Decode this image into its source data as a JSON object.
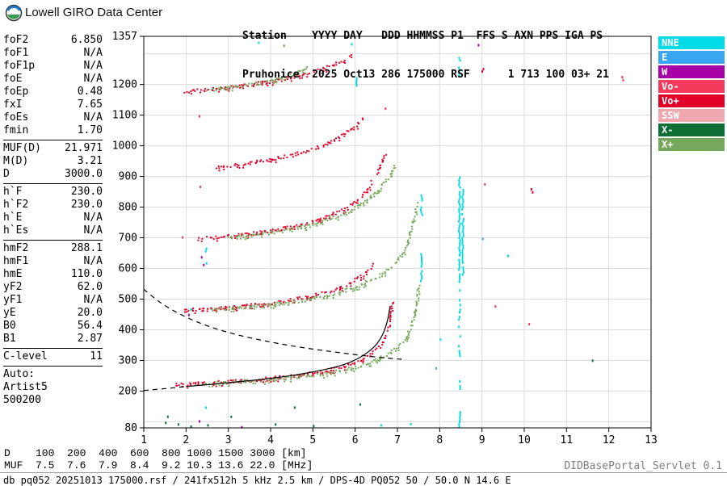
{
  "header": {
    "brand": "Lowell GIRO Data Center",
    "station_line1": "Station    YYYY DAY   DDD HHMMSS P1  FFS S AXN PPS IGA PS",
    "station_line2": "Pruhonice  2025 Oct13 286 175000 RSF      1 713 100 03+ 21"
  },
  "panel": {
    "groups": [
      [
        {
          "l": "foF2",
          "v": "6.850"
        },
        {
          "l": "foF1",
          "v": "N/A"
        },
        {
          "l": "foF1p",
          "v": "N/A"
        },
        {
          "l": "foE",
          "v": "N/A"
        },
        {
          "l": "foEp",
          "v": "0.48"
        },
        {
          "l": "fxI",
          "v": "7.65"
        },
        {
          "l": "foEs",
          "v": "N/A"
        },
        {
          "l": "fmin",
          "v": "1.70"
        }
      ],
      [
        {
          "l": "MUF(D)",
          "v": "21.971"
        },
        {
          "l": "M(D)",
          "v": "3.21"
        },
        {
          "l": "D",
          "v": "3000.0"
        }
      ],
      [
        {
          "l": "h`F",
          "v": "230.0"
        },
        {
          "l": "h`F2",
          "v": "230.0"
        },
        {
          "l": "h`E",
          "v": "N/A"
        },
        {
          "l": "h`Es",
          "v": "N/A"
        }
      ],
      [
        {
          "l": "hmF2",
          "v": "288.1"
        },
        {
          "l": "hmF1",
          "v": "N/A"
        },
        {
          "l": "hmE",
          "v": "110.0"
        },
        {
          "l": "yF2",
          "v": "62.0"
        },
        {
          "l": "yF1",
          "v": "N/A"
        },
        {
          "l": "yE",
          "v": "20.0"
        },
        {
          "l": "B0",
          "v": "56.4"
        },
        {
          "l": "B1",
          "v": "2.87"
        }
      ],
      [
        {
          "l": "C-level",
          "v": "11"
        }
      ],
      [
        {
          "l": "Auto:",
          "v": ""
        },
        {
          "l": "Artist5",
          "v": ""
        },
        {
          "l": "500200",
          "v": ""
        }
      ]
    ]
  },
  "legend": {
    "items": [
      {
        "label": "NNE",
        "color": "#00dbe7"
      },
      {
        "label": "E",
        "color": "#3aa5f0"
      },
      {
        "label": "W",
        "color": "#a800a8"
      },
      {
        "label": "Vo-",
        "color": "#f43a5a"
      },
      {
        "label": "Vo+",
        "color": "#e00028"
      },
      {
        "label": "SSW",
        "color": "#f0a8b0"
      },
      {
        "label": "X-",
        "color": "#0e6e34"
      },
      {
        "label": "X+",
        "color": "#76a85c"
      }
    ]
  },
  "footer": {
    "servlet": "DIDBasePortal_Servlet 0.1",
    "status": "db pq052 20251013 175000.rsf / 241fx512h 5 kHz 2.5 km / DPS-4D PQ052 50 / 50.0 N 14.6 E",
    "d_row": {
      "label": "D",
      "values": [
        "100",
        "200",
        "400",
        "600",
        "800",
        "1000",
        "1500",
        "3000"
      ],
      "unit": "[km]"
    },
    "muf_row": {
      "label": "MUF",
      "values": [
        "7.5",
        "7.6",
        "7.9",
        "8.4",
        "9.2",
        "10.3",
        "13.6",
        "22.0"
      ],
      "unit": "[MHz]"
    }
  },
  "chart_data": {
    "type": "scatter",
    "title": "",
    "xlabel": "",
    "ylabel": "",
    "xlim": [
      1,
      13
    ],
    "ylim": [
      80,
      1357
    ],
    "grid": true,
    "x_ticks": [
      1,
      2,
      3,
      4,
      5,
      6,
      7,
      8,
      9,
      10,
      11,
      12,
      13
    ],
    "y_tick_labels": [
      1357,
      1200,
      1100,
      1000,
      900,
      800,
      700,
      600,
      500,
      400,
      300,
      200,
      80
    ],
    "y_grid_step": 100,
    "colors": {
      "NNE": "#00dbe7",
      "E": "#3aa5f0",
      "W": "#a800a8",
      "Vo-": "#f43a5a",
      "Vo+": "#e00028",
      "SSW": "#f0a8b0",
      "X-": "#0e6e34",
      "X+": "#76a85c"
    },
    "series": [
      {
        "name": "F2-1hop-O",
        "color": "Vo+",
        "points": [
          [
            1.75,
            224
          ],
          [
            2.3,
            228
          ],
          [
            3.0,
            233
          ],
          [
            3.8,
            241
          ],
          [
            4.6,
            253
          ],
          [
            5.2,
            265
          ],
          [
            5.7,
            281
          ],
          [
            6.1,
            301
          ],
          [
            6.4,
            323
          ],
          [
            6.6,
            352
          ],
          [
            6.75,
            392
          ],
          [
            6.83,
            442
          ],
          [
            6.87,
            495
          ]
        ]
      },
      {
        "name": "F2-1hop-X",
        "color": "X+",
        "points": [
          [
            2.35,
            227
          ],
          [
            3.0,
            231
          ],
          [
            3.8,
            238
          ],
          [
            4.6,
            248
          ],
          [
            5.4,
            262
          ],
          [
            6.0,
            280
          ],
          [
            6.5,
            304
          ],
          [
            6.9,
            334
          ],
          [
            7.15,
            368
          ],
          [
            7.3,
            408
          ],
          [
            7.42,
            465
          ],
          [
            7.5,
            550
          ]
        ]
      },
      {
        "name": "F2-2hop-O",
        "color": "Vo+",
        "points": [
          [
            1.95,
            466
          ],
          [
            2.6,
            471
          ],
          [
            3.2,
            477
          ],
          [
            3.8,
            486
          ],
          [
            4.4,
            498
          ],
          [
            5.0,
            513
          ],
          [
            5.5,
            532
          ],
          [
            5.9,
            555
          ],
          [
            6.2,
            584
          ],
          [
            6.45,
            622
          ]
        ]
      },
      {
        "name": "F2-2hop-X",
        "color": "X+",
        "points": [
          [
            2.6,
            468
          ],
          [
            3.3,
            474
          ],
          [
            4.0,
            484
          ],
          [
            4.7,
            497
          ],
          [
            5.4,
            516
          ],
          [
            6.0,
            541
          ],
          [
            6.5,
            573
          ],
          [
            6.9,
            613
          ],
          [
            7.15,
            658
          ],
          [
            7.32,
            725
          ],
          [
            7.45,
            820
          ]
        ]
      },
      {
        "name": "F2-3hop-O",
        "color": "Vo+",
        "points": [
          [
            2.3,
            700
          ],
          [
            3.0,
            707
          ],
          [
            3.6,
            717
          ],
          [
            4.2,
            730
          ],
          [
            4.8,
            748
          ],
          [
            5.3,
            769
          ],
          [
            5.7,
            793
          ],
          [
            6.0,
            821
          ],
          [
            6.25,
            856
          ],
          [
            6.45,
            900
          ],
          [
            6.6,
            940
          ],
          [
            6.7,
            980
          ]
        ]
      },
      {
        "name": "F2-3hop-X",
        "color": "X+",
        "points": [
          [
            3.0,
            704
          ],
          [
            3.7,
            713
          ],
          [
            4.4,
            727
          ],
          [
            5.0,
            747
          ],
          [
            5.6,
            774
          ],
          [
            6.1,
            808
          ],
          [
            6.5,
            852
          ],
          [
            6.8,
            906
          ],
          [
            7.0,
            958
          ]
        ]
      },
      {
        "name": "F2-4hop-O",
        "color": "Vo+",
        "points": [
          [
            2.7,
            933
          ],
          [
            3.4,
            943
          ],
          [
            4.0,
            957
          ],
          [
            4.6,
            975
          ],
          [
            5.1,
            997
          ],
          [
            5.5,
            1021
          ],
          [
            5.9,
            1054
          ],
          [
            6.2,
            1096
          ]
        ]
      },
      {
        "name": "F2-5hop-O",
        "color": "Vo+",
        "points": [
          [
            1.95,
            1180
          ],
          [
            2.6,
            1188
          ],
          [
            3.3,
            1198
          ],
          [
            4.0,
            1212
          ],
          [
            4.6,
            1230
          ],
          [
            5.2,
            1252
          ],
          [
            5.7,
            1278
          ],
          [
            5.95,
            1300
          ]
        ]
      },
      {
        "name": "F2-5hop-X",
        "color": "X+",
        "points": [
          [
            2.5,
            1185
          ],
          [
            3.3,
            1197
          ],
          [
            4.0,
            1214
          ],
          [
            4.5,
            1234
          ],
          [
            4.9,
            1258
          ]
        ]
      }
    ],
    "verticals": [
      {
        "f": 8.45,
        "from": 555,
        "to": 900,
        "color": "NNE"
      },
      {
        "f": 8.53,
        "from": 580,
        "to": 860,
        "color": "NNE"
      },
      {
        "f": 8.45,
        "from": 300,
        "to": 540,
        "color": "NNE",
        "sparse": true
      },
      {
        "f": 8.45,
        "from": 80,
        "to": 135,
        "color": "NNE"
      },
      {
        "f": 8.47,
        "from": 185,
        "to": 235,
        "color": "NNE",
        "sparse": true
      },
      {
        "f": 8.45,
        "from": 1225,
        "to": 1298,
        "color": "NNE",
        "sparse": true
      },
      {
        "f": 7.55,
        "from": 560,
        "to": 650,
        "color": "NNE"
      },
      {
        "f": 7.55,
        "from": 778,
        "to": 842,
        "color": "NNE",
        "sparse": true
      },
      {
        "f": 2.45,
        "from": 588,
        "to": 668,
        "color": "NNE",
        "sparse": true
      },
      {
        "f": 9.0,
        "from": 1226,
        "to": 1262,
        "color": "Vo+",
        "sparse": true
      },
      {
        "f": 6.02,
        "from": 1200,
        "to": 1232,
        "color": "NNE",
        "sparse": true
      }
    ],
    "noise": [
      [
        1.5,
        100,
        "X-"
      ],
      [
        1.55,
        120,
        "X-"
      ],
      [
        1.8,
        95,
        "X-"
      ],
      [
        2.1,
        88,
        "X-"
      ],
      [
        2.3,
        105,
        "W"
      ],
      [
        2.45,
        150,
        "NNE"
      ],
      [
        2.5,
        92,
        "X-"
      ],
      [
        3.05,
        120,
        "X-"
      ],
      [
        3.3,
        86,
        "W"
      ],
      [
        4.1,
        95,
        "X-"
      ],
      [
        4.55,
        150,
        "X-"
      ],
      [
        5.0,
        90,
        "X-"
      ],
      [
        6.1,
        160,
        "X-"
      ],
      [
        6.6,
        92,
        "NNE"
      ],
      [
        7.3,
        96,
        "NNE"
      ],
      [
        2.35,
        640,
        "W"
      ],
      [
        2.4,
        615,
        "W"
      ],
      [
        2.32,
        870,
        "Vo-"
      ],
      [
        2.3,
        1100,
        "Vo-"
      ],
      [
        1.9,
        705,
        "Vo-"
      ],
      [
        2.05,
        452,
        "W"
      ],
      [
        2.1,
        470,
        "NNE"
      ],
      [
        7.9,
        278,
        "E"
      ],
      [
        8.0,
        372,
        "NNE"
      ],
      [
        9.05,
        878,
        "Vo-"
      ],
      [
        9.3,
        480,
        "Vo-"
      ],
      [
        9.6,
        645,
        "NNE"
      ],
      [
        10.1,
        422,
        "Vo-"
      ],
      [
        10.15,
        862,
        "Vo+"
      ],
      [
        10.18,
        852,
        "Vo+"
      ],
      [
        11.6,
        303,
        "X-"
      ],
      [
        12.3,
        1228,
        "Vo-"
      ],
      [
        12.32,
        1218,
        "Vo-"
      ],
      [
        9.0,
        700,
        "E"
      ],
      [
        8.9,
        1332,
        "W"
      ],
      [
        5.9,
        1335,
        "NNE"
      ],
      [
        6.7,
        1125,
        "Vo-"
      ],
      [
        4.3,
        1330,
        "X+"
      ],
      [
        3.7,
        1340,
        "NNE"
      ]
    ],
    "lines": [
      {
        "name": "profile-start",
        "style": "dashed",
        "points": [
          [
            1.0,
            202
          ],
          [
            1.5,
            208
          ],
          [
            2.0,
            215
          ]
        ]
      },
      {
        "name": "profile-fit",
        "style": "solid",
        "points": [
          [
            2.0,
            215
          ],
          [
            2.6,
            222
          ],
          [
            3.2,
            230
          ],
          [
            3.9,
            240
          ],
          [
            4.6,
            253
          ],
          [
            5.2,
            268
          ],
          [
            5.7,
            285
          ],
          [
            6.05,
            305
          ],
          [
            6.3,
            327
          ],
          [
            6.5,
            352
          ],
          [
            6.65,
            385
          ],
          [
            6.76,
            428
          ],
          [
            6.83,
            478
          ]
        ]
      },
      {
        "name": "muf-transmission-curve",
        "style": "dashed",
        "points": [
          [
            1.0,
            532
          ],
          [
            1.4,
            488
          ],
          [
            1.9,
            448
          ],
          [
            2.5,
            413
          ],
          [
            3.2,
            384
          ],
          [
            4.0,
            360
          ],
          [
            4.8,
            341
          ],
          [
            5.6,
            326
          ],
          [
            6.3,
            314
          ],
          [
            6.9,
            306
          ],
          [
            7.2,
            303
          ]
        ]
      }
    ]
  }
}
